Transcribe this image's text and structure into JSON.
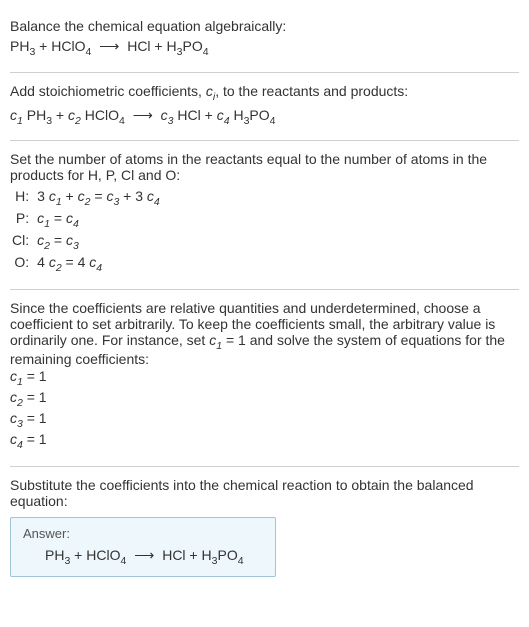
{
  "section1": {
    "intro": "Balance the chemical equation algebraically:"
  },
  "equation_raw": {
    "lhs1": "PH",
    "lhs1_sub": "3",
    "plus1": " + ",
    "lhs2": "HClO",
    "lhs2_sub": "4",
    "arrow": "⟶",
    "rhs1": "HCl",
    "plus2": " + ",
    "rhs2a": "H",
    "rhs2a_sub": "3",
    "rhs2b": "PO",
    "rhs2b_sub": "4"
  },
  "section2": {
    "intro_a": "Add stoichiometric coefficients, ",
    "intro_ci": "c",
    "intro_ci_sub": "i",
    "intro_b": ", to the reactants and products:"
  },
  "equation_coef": {
    "c1": "c",
    "c1_sub": "1",
    "sp1": " ",
    "t1": "PH",
    "t1_sub": "3",
    "plus1": " + ",
    "c2": "c",
    "c2_sub": "2",
    "sp2": " ",
    "t2": "HClO",
    "t2_sub": "4",
    "arrow": "⟶",
    "c3": "c",
    "c3_sub": "3",
    "sp3": " ",
    "t3": "HCl",
    "plus2": " + ",
    "c4": "c",
    "c4_sub": "4",
    "sp4": " ",
    "t4a": "H",
    "t4a_sub": "3",
    "t4b": "PO",
    "t4b_sub": "4"
  },
  "section3": {
    "intro": "Set the number of atoms in the reactants equal to the number of atoms in the products for H, P, Cl and O:",
    "rows": {
      "H": {
        "label": "H:",
        "lhs_a": "3 ",
        "lhs_c1": "c",
        "lhs_c1_sub": "1",
        "lhs_plus": " + ",
        "lhs_c2": "c",
        "lhs_c2_sub": "2",
        "eq": " = ",
        "rhs_c3": "c",
        "rhs_c3_sub": "3",
        "rhs_plus": " + 3 ",
        "rhs_c4": "c",
        "rhs_c4_sub": "4"
      },
      "P": {
        "label": "P:",
        "lhs_c1": "c",
        "lhs_c1_sub": "1",
        "eq": " = ",
        "rhs_c4": "c",
        "rhs_c4_sub": "4"
      },
      "Cl": {
        "label": "Cl:",
        "lhs_c2": "c",
        "lhs_c2_sub": "2",
        "eq": " = ",
        "rhs_c3": "c",
        "rhs_c3_sub": "3"
      },
      "O": {
        "label": "O:",
        "lhs_a": "4 ",
        "lhs_c2": "c",
        "lhs_c2_sub": "2",
        "eq": " = 4 ",
        "rhs_c4": "c",
        "rhs_c4_sub": "4"
      }
    }
  },
  "section4": {
    "intro_a": "Since the coefficients are relative quantities and underdetermined, choose a coefficient to set arbitrarily. To keep the coefficients small, the arbitrary value is ordinarily one. For instance, set ",
    "intro_c1": "c",
    "intro_c1_sub": "1",
    "intro_b": " = 1 and solve the system of equations for the remaining coefficients:",
    "coefs": {
      "c1": {
        "c": "c",
        "sub": "1",
        "val": " = 1"
      },
      "c2": {
        "c": "c",
        "sub": "2",
        "val": " = 1"
      },
      "c3": {
        "c": "c",
        "sub": "3",
        "val": " = 1"
      },
      "c4": {
        "c": "c",
        "sub": "4",
        "val": " = 1"
      }
    }
  },
  "section5": {
    "intro": "Substitute the coefficients into the chemical reaction to obtain the balanced equation:",
    "answer_label": "Answer:"
  }
}
